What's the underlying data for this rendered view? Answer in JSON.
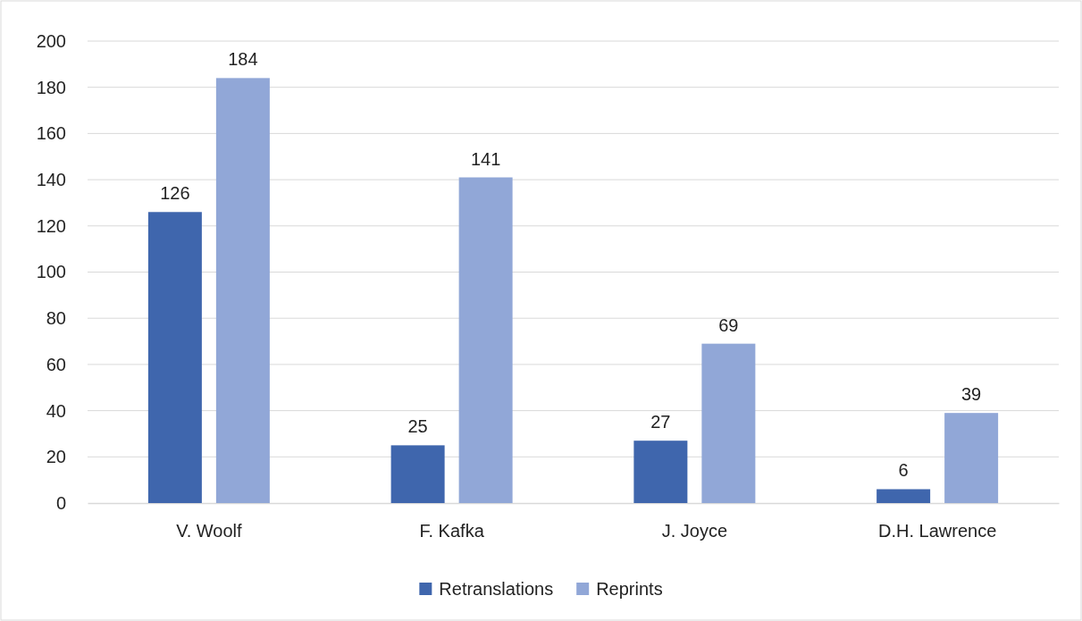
{
  "chart_data": {
    "type": "bar",
    "categories": [
      "V. Woolf",
      "F. Kafka",
      "J. Joyce",
      "D.H. Lawrence"
    ],
    "series": [
      {
        "name": "Retranslations",
        "color": "#3f66ad",
        "values": [
          126,
          25,
          27,
          6
        ]
      },
      {
        "name": "Reprints",
        "color": "#91a7d7",
        "values": [
          184,
          141,
          69,
          39
        ]
      }
    ],
    "ylim": [
      0,
      200
    ],
    "yticks": [
      0,
      20,
      40,
      60,
      80,
      100,
      120,
      140,
      160,
      180,
      200
    ],
    "grid": "y",
    "data_labels": true,
    "legend": "bottom"
  }
}
